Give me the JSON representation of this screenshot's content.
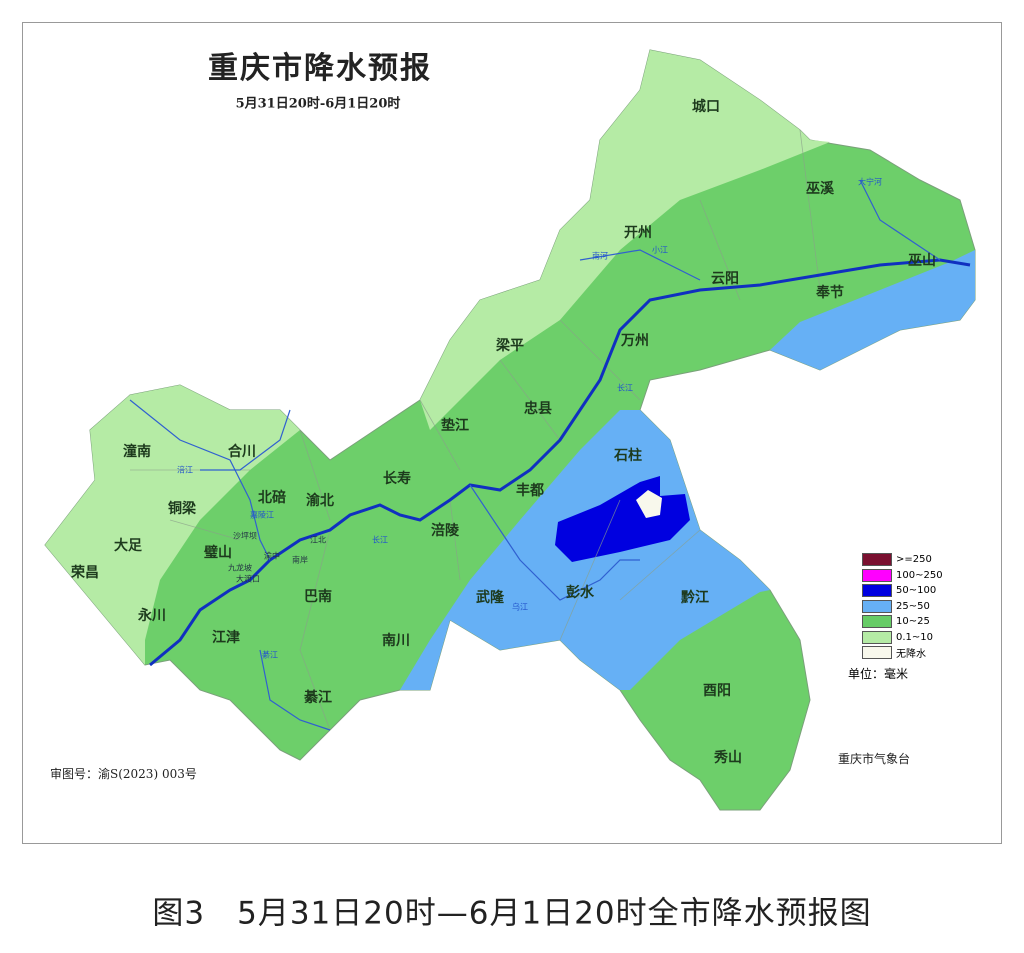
{
  "title": "重庆市降水预报",
  "subtitle": "5月31日20时-6月1日20时",
  "caption": "图3　5月31日20时—6月1日20时全市降水预报图",
  "approval_number": "审图号：渝S(2023) 003号",
  "agency": "重庆市气象台",
  "legend": {
    "items": [
      {
        "label": ">=250",
        "color": "#7a1030"
      },
      {
        "label": "100~250",
        "color": "#ff00ff"
      },
      {
        "label": "50~100",
        "color": "#0000e0"
      },
      {
        "label": "25~50",
        "color": "#66b0f5"
      },
      {
        "label": "10~25",
        "color": "#66cc66"
      },
      {
        "label": "0.1~10",
        "color": "#b5eba5"
      },
      {
        "label": "无降水",
        "color": "#f8f8ec"
      }
    ],
    "unit": "单位：毫米"
  },
  "places": [
    "城口",
    "巫溪",
    "开州",
    "云阳",
    "巫山",
    "奉节",
    "梁平",
    "万州",
    "垫江",
    "忠县",
    "石柱",
    "潼南",
    "合川",
    "铜梁",
    "大足",
    "荣昌",
    "北碚",
    "渝北",
    "璧山",
    "长寿",
    "丰都",
    "涪陵",
    "永川",
    "巴南",
    "江津",
    "綦江",
    "南川",
    "武隆",
    "彭水",
    "黔江",
    "酉阳",
    "秀山"
  ],
  "small_places": [
    "沙坪坝",
    "江北",
    "南岸",
    "九龙坡",
    "大渡口",
    "渝中"
  ],
  "rivers": [
    "长江",
    "嘉陵江",
    "涪江",
    "乌江",
    "綦江",
    "大宁河",
    "南河",
    "小江",
    "长江"
  ]
}
